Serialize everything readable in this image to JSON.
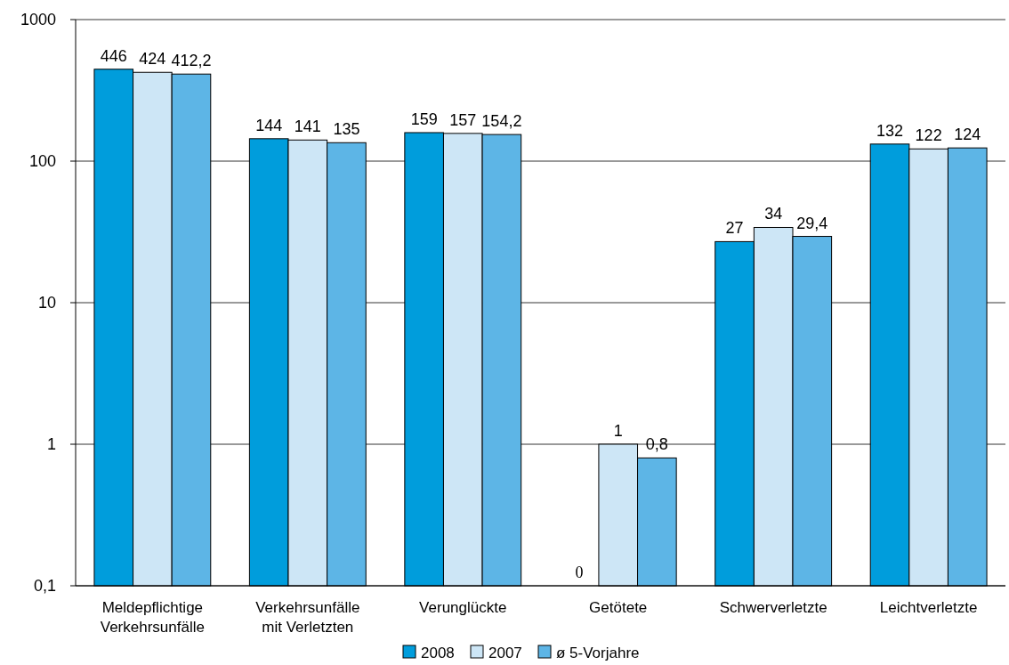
{
  "chart_data": {
    "type": "bar",
    "categories": [
      "Meldepflichtige Verkehrsunfälle",
      "Verkehrsunfälle mit Verletzten",
      "Verunglückte",
      "Getötete",
      "Schwerverletzte",
      "Leichtverletzte"
    ],
    "series": [
      {
        "name": "2008",
        "color": "#009ddc",
        "values": [
          446,
          144,
          159,
          null,
          27,
          132
        ],
        "value_labels": [
          "446",
          "144",
          "159",
          "0",
          "27",
          "132"
        ]
      },
      {
        "name": "2007",
        "color": "#cde6f6",
        "values": [
          424,
          141,
          157,
          1,
          34,
          122
        ],
        "value_labels": [
          "424",
          "141",
          "157",
          "1",
          "34",
          "122"
        ]
      },
      {
        "name": "ø 5-Vorjahre",
        "color": "#5db5e6",
        "values": [
          412.2,
          135,
          154.2,
          0.8,
          29.4,
          124
        ],
        "value_labels": [
          "412,2",
          "135",
          "154,2",
          "0,8",
          "29,4",
          "124"
        ]
      }
    ],
    "log": true,
    "ylim": [
      0.1,
      1000
    ],
    "yticks": [
      {
        "value": 0.1,
        "label": "0,1"
      },
      1,
      10,
      100,
      1000
    ],
    "grid": "y",
    "legend": "bottom"
  }
}
